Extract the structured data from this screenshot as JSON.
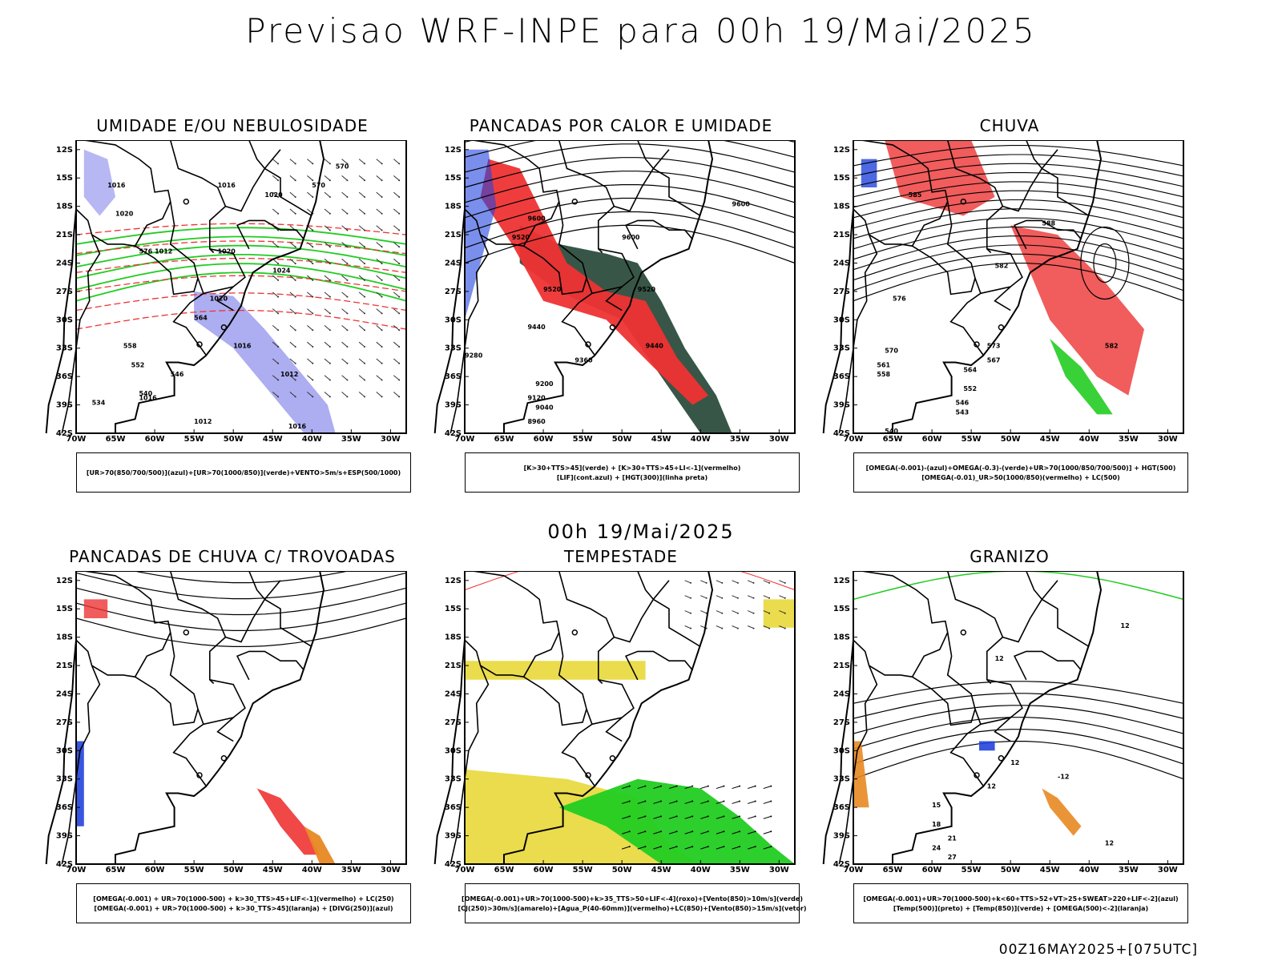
{
  "header": {
    "title": "Previsao WRF-INPE  para 00h 19/Mai/2025"
  },
  "center_date": "00h 19/Mai/2025",
  "footer": {
    "run_info": "00Z16MAY2025+[075UTC]"
  },
  "axes": {
    "lat_labels": [
      "12S",
      "15S",
      "18S",
      "21S",
      "24S",
      "27S",
      "30S",
      "33S",
      "36S",
      "39S",
      "42S"
    ],
    "lon_labels": [
      "70W",
      "65W",
      "60W",
      "55W",
      "50W",
      "45W",
      "40W",
      "35W",
      "30W"
    ]
  },
  "panels": [
    {
      "title": "UMIDADE E/OU NEBULOSIDADE",
      "legend": [
        "[UR>70(850/700/500)](azul)+[UR>70(1000/850)](verde)+VENTO>5m/s+ESP(500/1000)"
      ],
      "contour_labels": [
        "1016",
        "1016",
        "1020",
        "1020",
        "1012",
        "1020",
        "1024",
        "1020",
        "1016",
        "1012",
        "1016",
        "1012",
        "1016",
        "570",
        "570",
        "576",
        "564",
        "558",
        "552",
        "546",
        "540",
        "534"
      ]
    },
    {
      "title": "PANCADAS POR CALOR E UMIDADE",
      "legend": [
        "[K>30+TTS>45](verde) + [K>30+TTS>45+LI<-1](vermelho)",
        "[LIF](cont.azul) + [HGT(300)](linha preta)"
      ],
      "contour_labels": [
        "9600",
        "9600",
        "9600",
        "9520",
        "9520",
        "9520",
        "9440",
        "9440",
        "9360",
        "9280",
        "9200",
        "9120",
        "9040",
        "8960"
      ]
    },
    {
      "title": "CHUVA",
      "legend": [
        "[OMEGA(-0.001)-(azul)+OMEGA(-0.3)-(verde)+UR>70(1000/850/700/500)] + HGT(500)",
        "[OMEGA(-0.01)_UR>50(1000/850)(vermelho) + LC(500)"
      ],
      "contour_labels": [
        "588",
        "582",
        "576",
        "573",
        "570",
        "567",
        "564",
        "561",
        "558",
        "552",
        "546",
        "543",
        "540",
        "585",
        "582"
      ]
    },
    {
      "title": "PANCADAS DE CHUVA C/ TROVOADAS",
      "legend": [
        "[OMEGA(-0.001) + UR>70(1000-500) + k>30_TTS>45+LIF<-1](vermelho) + LC(250)",
        "[OMEGA(-0.001) + UR>70(1000-500) + k>30_TTS>45](laranja) + [DIVG(250)](azul)"
      ],
      "contour_labels": []
    },
    {
      "title": "TEMPESTADE",
      "legend": [
        "[OMEGA(-0.001)+UR>70(1000-500)+k>35_TTS>50+LIF<-4](roxo)+[Vento(850)>10m/s](verde)",
        "[CJ(250)>30m/s](amarelo)+[Agua_P(40-60mm)](vermelho)+LC(850)+[Vento(850)>15m/s](vetor)"
      ],
      "contour_labels": []
    },
    {
      "title": "GRANIZO",
      "legend": [
        "[OMEGA(-0.001)+UR>70(1000-500)+k<60+TTS>52+VT>25+SWEAT>220+LIF<-2](azul)",
        "[Temp(500)](preto) + [Temp(850)](verde) + [OMEGA(500)<-2](laranja)"
      ],
      "contour_labels": [
        "12",
        "12",
        "-12",
        "12",
        "15",
        "18",
        "21",
        "24",
        "27",
        "12",
        "12"
      ]
    }
  ],
  "colors": {
    "blue": "#2244dd",
    "green": "#22cc22",
    "red": "#ee3333",
    "lightblue": "#9999ee",
    "darkgreen": "#224433",
    "yellow": "#e8d838",
    "orange": "#e88822",
    "dashred": "#ee3333"
  }
}
